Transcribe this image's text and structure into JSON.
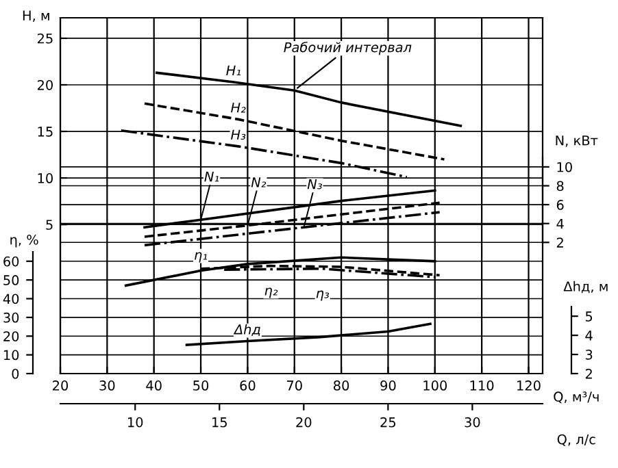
{
  "chart_data": [
    {
      "type": "line",
      "xlabel": "Q, м³/ч",
      "ylabel": "H, м",
      "y2label": "N, кВт",
      "y3label": "η, %",
      "x2label": "Q, л/с",
      "xlim": [
        20,
        123
      ],
      "xticks": [
        20,
        30,
        40,
        50,
        60,
        70,
        80,
        90,
        100,
        110,
        120
      ],
      "ylim": [
        -11,
        27.2
      ],
      "yticks": [
        5,
        10,
        15,
        20,
        25
      ],
      "y2lim": [
        -11.9,
        25.8
      ],
      "y2ticks": [
        2,
        4,
        6,
        8,
        10
      ],
      "y3lim": [
        0,
        190
      ],
      "y3ticks": [
        0,
        10,
        20,
        30,
        40,
        50,
        60
      ],
      "x2lim": [
        5.56,
        34.17
      ],
      "x2ticks": [
        10,
        15,
        20,
        25,
        30
      ],
      "grid": true,
      "annotations": [
        {
          "text": "Рабочий интервал",
          "x": 70,
          "y": 19.4
        }
      ],
      "series": [
        {
          "name": "H₁",
          "color": "#000000",
          "line_style": "solid",
          "x": [
            40.6,
            57,
            70,
            80,
            105.5
          ],
          "values": [
            21.3,
            20.3,
            19.4,
            18.1,
            15.6
          ]
        },
        {
          "name": "H₂",
          "color": "#000000",
          "line_style": "dashed",
          "x": [
            38,
            58,
            80,
            102
          ],
          "values": [
            18.0,
            16.3,
            14.0,
            12.0
          ]
        },
        {
          "name": "H₃",
          "color": "#000000",
          "line_style": "dashdot",
          "x": [
            33,
            58,
            80,
            94
          ],
          "values": [
            15.1,
            13.4,
            11.6,
            10.1
          ]
        },
        {
          "name": "N₁",
          "color": "#000000",
          "axis": "y2",
          "line_style": "solid",
          "x": [
            38,
            50,
            80,
            100
          ],
          "values": [
            3.6,
            4.4,
            6.4,
            7.5
          ]
        },
        {
          "name": "N₂",
          "color": "#000000",
          "axis": "y2",
          "line_style": "dashed",
          "x": [
            38,
            60,
            101
          ],
          "values": [
            2.6,
            3.8,
            6.2
          ]
        },
        {
          "name": "N₃",
          "color": "#000000",
          "axis": "y2",
          "line_style": "dashdot",
          "x": [
            38,
            72,
            101
          ],
          "values": [
            1.7,
            3.6,
            5.2
          ]
        },
        {
          "name": "η₁",
          "color": "#000000",
          "axis": "y3",
          "line_style": "solid",
          "x": [
            34,
            50,
            60,
            80,
            100
          ],
          "values": [
            47,
            55,
            58.5,
            62,
            60
          ]
        },
        {
          "name": "η₂",
          "color": "#000000",
          "axis": "y3",
          "line_style": "dashed",
          "x": [
            50,
            65,
            80,
            101
          ],
          "values": [
            56,
            57.5,
            57,
            52.5
          ]
        },
        {
          "name": "η₃",
          "color": "#000000",
          "axis": "y3",
          "line_style": "dashdot",
          "x": [
            55,
            76,
            100
          ],
          "values": [
            55.5,
            56,
            51.5
          ]
        }
      ]
    },
    {
      "type": "line",
      "ylabel": "Δhд, м",
      "tick_labels": "y",
      "xlim": [
        20,
        123
      ],
      "ylim": [
        2,
        20.6
      ],
      "yticks": [
        2,
        3,
        4,
        5
      ],
      "series": [
        {
          "name": "Δhд",
          "color": "#000000",
          "line_style": "solid",
          "x": [
            47,
            60,
            75,
            80,
            90,
            99
          ],
          "values": [
            3.5,
            3.7,
            3.9,
            4.0,
            4.2,
            4.6
          ]
        }
      ]
    }
  ]
}
